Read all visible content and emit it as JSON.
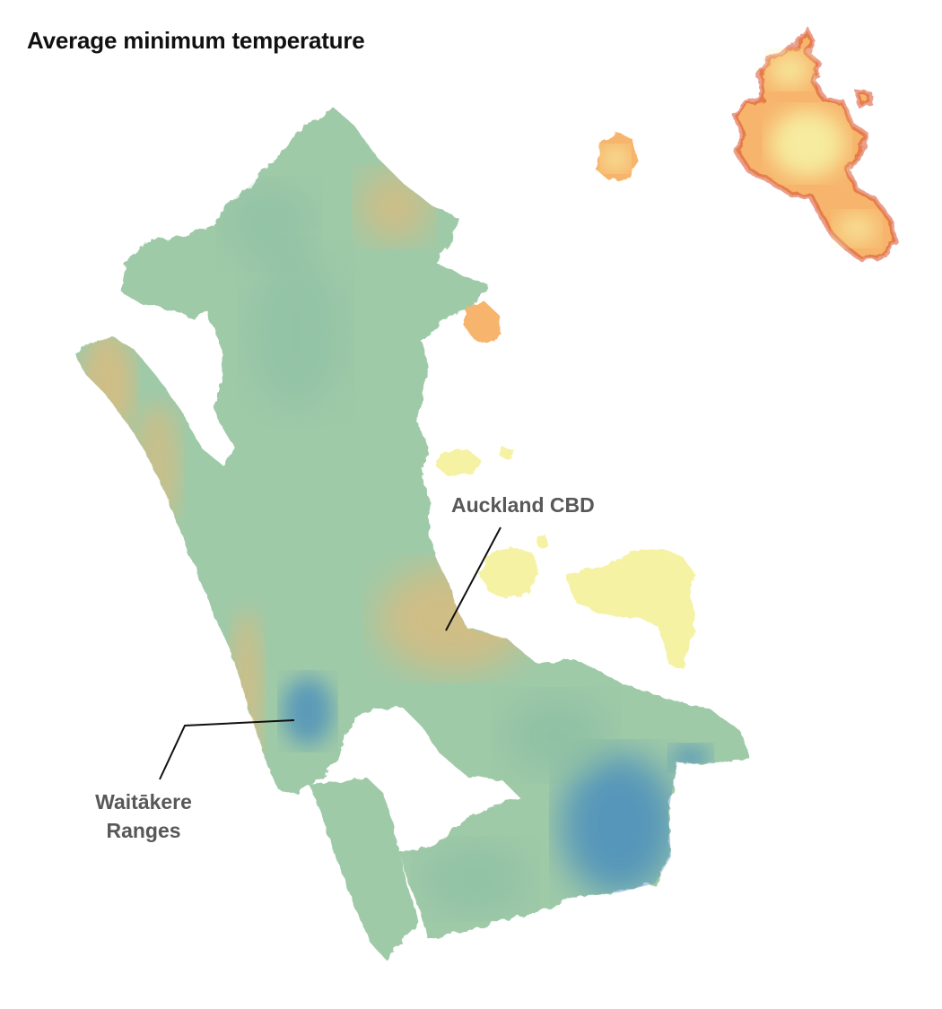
{
  "title": "Average minimum temperature",
  "color_scale": {
    "colder": "#3d85c0",
    "cool": "#9fcaa8",
    "mild": "#f6f2a4",
    "warm": "#f7b46c",
    "warmest": "#d8502f"
  },
  "annotations": [
    {
      "id": "auckland-cbd",
      "lines": [
        "Auckland CBD"
      ]
    },
    {
      "id": "waitakere-ranges",
      "lines": [
        "Waitākere",
        "Ranges"
      ]
    }
  ]
}
